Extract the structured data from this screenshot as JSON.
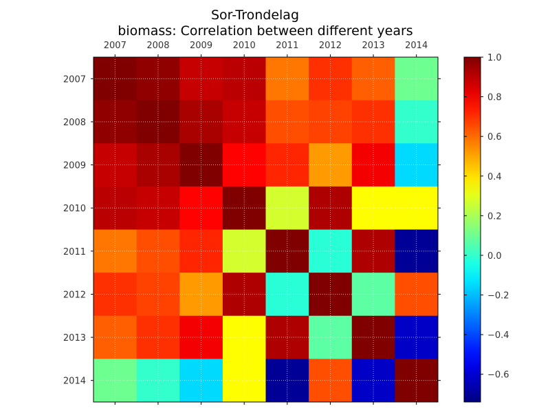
{
  "chart_data": {
    "type": "heatmap",
    "title": "Sor-Trondelag",
    "subtitle": "biomass: Correlation between different years",
    "x_labels": [
      "2007",
      "2008",
      "2009",
      "2010",
      "2011",
      "2012",
      "2013",
      "2014"
    ],
    "y_labels": [
      "2007",
      "2008",
      "2009",
      "2010",
      "2011",
      "2012",
      "2013",
      "2014"
    ],
    "matrix": [
      [
        1.0,
        0.97,
        0.88,
        0.9,
        0.58,
        0.7,
        0.62,
        0.1
      ],
      [
        0.97,
        1.0,
        0.93,
        0.88,
        0.65,
        0.67,
        0.7,
        0.0
      ],
      [
        0.88,
        0.93,
        1.0,
        0.78,
        0.72,
        0.52,
        0.8,
        -0.15
      ],
      [
        0.9,
        0.88,
        0.78,
        1.0,
        0.27,
        0.92,
        0.35,
        0.35
      ],
      [
        0.58,
        0.65,
        0.72,
        0.27,
        1.0,
        -0.02,
        0.92,
        -0.7
      ],
      [
        0.7,
        0.67,
        0.52,
        0.92,
        -0.02,
        1.0,
        0.07,
        0.65
      ],
      [
        0.62,
        0.7,
        0.8,
        0.35,
        0.92,
        0.07,
        1.0,
        -0.62
      ],
      [
        0.1,
        0.0,
        -0.15,
        0.35,
        -0.7,
        0.65,
        -0.62,
        1.0
      ]
    ],
    "colormap": "jet",
    "vmin": -0.74,
    "vmax": 1.0,
    "colorbar_ticks": [
      "1.0",
      "0.8",
      "0.6",
      "0.4",
      "0.2",
      "0.0",
      "−0.2",
      "−0.4",
      "−0.6"
    ],
    "colorbar_tick_values": [
      1.0,
      0.8,
      0.6,
      0.4,
      0.2,
      0.0,
      -0.2,
      -0.4,
      -0.6
    ],
    "grid": true,
    "x_axis_position": "top",
    "colorbar_position": "right"
  }
}
